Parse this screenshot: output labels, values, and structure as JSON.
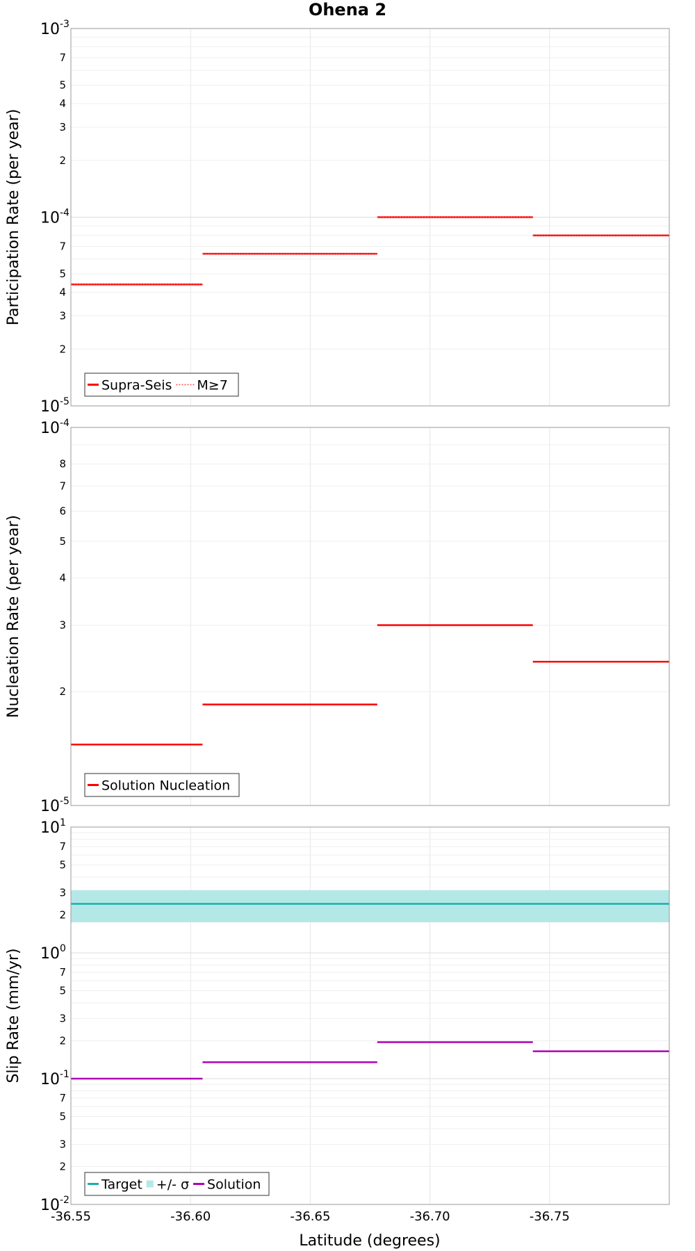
{
  "chart_data": {
    "type": "line",
    "title": "Ohena 2",
    "xlabel": "Latitude (degrees)",
    "xlim": [
      -36.55,
      -36.8
    ],
    "xticks": [
      -36.55,
      -36.6,
      -36.65,
      -36.7,
      -36.75
    ],
    "xtick_labels": [
      "-36.55",
      "-36.60",
      "-36.65",
      "-36.70",
      "-36.75"
    ],
    "panels": [
      {
        "id": "participation",
        "ylabel": "Participation Rate (per year)",
        "yscale": "log",
        "ylim": [
          1e-05,
          0.001
        ],
        "major_ticks": [
          {
            "value": 1e-05,
            "base": "10",
            "exp": "-5"
          },
          {
            "value": 0.0001,
            "base": "10",
            "exp": "-4"
          },
          {
            "value": 0.001,
            "base": "10",
            "exp": "-3"
          }
        ],
        "minor_ticks": [
          {
            "value": 2e-05,
            "label": "2"
          },
          {
            "value": 3e-05,
            "label": "3"
          },
          {
            "value": 4e-05,
            "label": "4"
          },
          {
            "value": 5e-05,
            "label": "5"
          },
          {
            "value": 7e-05,
            "label": "7"
          },
          {
            "value": 0.0002,
            "label": "2"
          },
          {
            "value": 0.0003,
            "label": "3"
          },
          {
            "value": 0.0004,
            "label": "4"
          },
          {
            "value": 0.0005,
            "label": "5"
          },
          {
            "value": 0.0007,
            "label": "7"
          }
        ],
        "series": [
          {
            "name": "Supra-Seis",
            "style": "solid",
            "color": "#ff0000",
            "segments": [
              {
                "x": [
                  -36.55,
                  -36.605
                ],
                "y": 4.4e-05
              },
              {
                "x": [
                  -36.605,
                  -36.678
                ],
                "y": 6.4e-05
              },
              {
                "x": [
                  -36.678,
                  -36.743
                ],
                "y": 0.0001
              },
              {
                "x": [
                  -36.743,
                  -36.8
                ],
                "y": 8e-05
              }
            ]
          },
          {
            "name": "M≥7",
            "style": "dotted",
            "color": "#ff0000",
            "segments": [
              {
                "x": [
                  -36.55,
                  -36.605
                ],
                "y": 4.4e-05
              },
              {
                "x": [
                  -36.605,
                  -36.678
                ],
                "y": 6.4e-05
              },
              {
                "x": [
                  -36.678,
                  -36.743
                ],
                "y": 0.0001
              },
              {
                "x": [
                  -36.743,
                  -36.8
                ],
                "y": 8e-05
              }
            ]
          }
        ]
      },
      {
        "id": "nucleation",
        "ylabel": "Nucleation Rate (per year)",
        "yscale": "log",
        "ylim": [
          1e-05,
          0.0001
        ],
        "major_ticks": [
          {
            "value": 1e-05,
            "base": "10",
            "exp": "-5"
          },
          {
            "value": 0.0001,
            "base": "10",
            "exp": "-4"
          }
        ],
        "minor_ticks": [
          {
            "value": 2e-05,
            "label": "2"
          },
          {
            "value": 3e-05,
            "label": "3"
          },
          {
            "value": 4e-05,
            "label": "4"
          },
          {
            "value": 5e-05,
            "label": "5"
          },
          {
            "value": 6e-05,
            "label": "6"
          },
          {
            "value": 7e-05,
            "label": "7"
          },
          {
            "value": 8e-05,
            "label": "8"
          }
        ],
        "series": [
          {
            "name": "Solution Nucleation",
            "style": "solid",
            "color": "#ff0000",
            "segments": [
              {
                "x": [
                  -36.55,
                  -36.605
                ],
                "y": 1.45e-05
              },
              {
                "x": [
                  -36.605,
                  -36.678
                ],
                "y": 1.85e-05
              },
              {
                "x": [
                  -36.678,
                  -36.743
                ],
                "y": 3e-05
              },
              {
                "x": [
                  -36.743,
                  -36.8
                ],
                "y": 2.4e-05
              }
            ]
          }
        ]
      },
      {
        "id": "slip",
        "ylabel": "Slip Rate (mm/yr)",
        "yscale": "log",
        "ylim": [
          0.01,
          10
        ],
        "major_ticks": [
          {
            "value": 0.01,
            "base": "10",
            "exp": "-2"
          },
          {
            "value": 0.1,
            "base": "10",
            "exp": "-1"
          },
          {
            "value": 1,
            "base": "10",
            "exp": "0"
          },
          {
            "value": 10,
            "base": "10",
            "exp": "1"
          }
        ],
        "minor_ticks": [
          {
            "value": 0.02,
            "label": "2"
          },
          {
            "value": 0.03,
            "label": "3"
          },
          {
            "value": 0.05,
            "label": "5"
          },
          {
            "value": 0.07,
            "label": "7"
          },
          {
            "value": 0.2,
            "label": "2"
          },
          {
            "value": 0.3,
            "label": "3"
          },
          {
            "value": 0.5,
            "label": "5"
          },
          {
            "value": 0.7,
            "label": "7"
          },
          {
            "value": 2,
            "label": "2"
          },
          {
            "value": 3,
            "label": "3"
          },
          {
            "value": 5,
            "label": "5"
          },
          {
            "value": 7,
            "label": "7"
          }
        ],
        "band": {
          "name": "+/- σ",
          "color": "#b3e8e6",
          "y_low": 1.75,
          "y_high": 3.15
        },
        "series": [
          {
            "name": "Target",
            "style": "solid",
            "color": "#1aaeae",
            "segments": [
              {
                "x": [
                  -36.55,
                  -36.8
                ],
                "y": 2.45
              }
            ]
          },
          {
            "name": "Solution",
            "style": "solid",
            "color": "#b000b8",
            "segments": [
              {
                "x": [
                  -36.55,
                  -36.605
                ],
                "y": 0.1
              },
              {
                "x": [
                  -36.605,
                  -36.678
                ],
                "y": 0.135
              },
              {
                "x": [
                  -36.678,
                  -36.743
                ],
                "y": 0.195
              },
              {
                "x": [
                  -36.743,
                  -36.8
                ],
                "y": 0.165
              }
            ]
          }
        ]
      }
    ]
  }
}
